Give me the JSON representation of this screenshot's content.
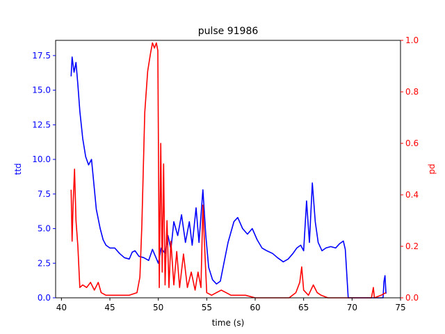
{
  "chart_data": {
    "type": "line",
    "title": "pulse 91986",
    "xlabel": "time (s)",
    "xlim": [
      39.4,
      75.0
    ],
    "xticks": [
      40,
      45,
      50,
      55,
      60,
      65,
      70,
      75
    ],
    "grid": false,
    "left_axis": {
      "label": "ttd",
      "color": "#0000ff",
      "ylim": [
        0,
        18.6
      ],
      "ticks": [
        0.0,
        2.5,
        5.0,
        7.5,
        10.0,
        12.5,
        15.0,
        17.5
      ],
      "tick_labels": [
        "0.0",
        "2.5",
        "5.0",
        "7.5",
        "10.0",
        "12.5",
        "15.0",
        "17.5"
      ]
    },
    "right_axis": {
      "label": "pd",
      "color": "#ff0000",
      "ylim": [
        0,
        1.0
      ],
      "ticks": [
        0.0,
        0.2,
        0.4,
        0.6,
        0.8,
        1.0
      ],
      "tick_labels": [
        "0.0",
        "0.2",
        "0.4",
        "0.6",
        "0.8",
        "1.0"
      ]
    },
    "series": [
      {
        "axis": "left",
        "color": "#0000ff",
        "points": [
          [
            41.0,
            16.0
          ],
          [
            41.1,
            17.4
          ],
          [
            41.3,
            16.3
          ],
          [
            41.5,
            17.0
          ],
          [
            41.7,
            15.4
          ],
          [
            41.9,
            13.5
          ],
          [
            42.2,
            11.5
          ],
          [
            42.5,
            10.2
          ],
          [
            42.8,
            9.6
          ],
          [
            43.1,
            10.0
          ],
          [
            43.3,
            8.6
          ],
          [
            43.6,
            6.4
          ],
          [
            44.0,
            5.0
          ],
          [
            44.3,
            4.2
          ],
          [
            44.6,
            3.8
          ],
          [
            45.0,
            3.6
          ],
          [
            45.5,
            3.6
          ],
          [
            46.0,
            3.2
          ],
          [
            46.5,
            2.9
          ],
          [
            47.0,
            2.8
          ],
          [
            47.3,
            3.3
          ],
          [
            47.6,
            3.4
          ],
          [
            48.0,
            3.0
          ],
          [
            48.5,
            2.9
          ],
          [
            49.0,
            2.7
          ],
          [
            49.4,
            3.5
          ],
          [
            49.7,
            3.0
          ],
          [
            50.0,
            2.5
          ],
          [
            50.3,
            3.6
          ],
          [
            50.7,
            3.2
          ],
          [
            51.0,
            4.5
          ],
          [
            51.3,
            3.5
          ],
          [
            51.6,
            5.5
          ],
          [
            52.0,
            4.5
          ],
          [
            52.4,
            6.0
          ],
          [
            52.8,
            4.0
          ],
          [
            53.2,
            5.5
          ],
          [
            53.5,
            3.8
          ],
          [
            53.9,
            6.5
          ],
          [
            54.2,
            4.0
          ],
          [
            54.6,
            7.8
          ],
          [
            54.9,
            4.5
          ],
          [
            55.2,
            2.2
          ],
          [
            55.6,
            1.3
          ],
          [
            56.0,
            1.0
          ],
          [
            56.4,
            1.2
          ],
          [
            56.8,
            2.6
          ],
          [
            57.2,
            4.0
          ],
          [
            57.8,
            5.5
          ],
          [
            58.2,
            5.8
          ],
          [
            58.7,
            5.0
          ],
          [
            59.2,
            4.6
          ],
          [
            59.7,
            5.0
          ],
          [
            60.2,
            4.2
          ],
          [
            60.7,
            3.6
          ],
          [
            61.2,
            3.4
          ],
          [
            61.8,
            3.2
          ],
          [
            62.3,
            2.9
          ],
          [
            62.9,
            2.6
          ],
          [
            63.4,
            2.8
          ],
          [
            63.9,
            3.2
          ],
          [
            64.3,
            3.6
          ],
          [
            64.7,
            3.8
          ],
          [
            65.0,
            3.4
          ],
          [
            65.3,
            7.0
          ],
          [
            65.6,
            4.0
          ],
          [
            65.9,
            8.3
          ],
          [
            66.2,
            5.5
          ],
          [
            66.5,
            4.0
          ],
          [
            66.9,
            3.4
          ],
          [
            67.3,
            3.6
          ],
          [
            67.8,
            3.7
          ],
          [
            68.3,
            3.6
          ],
          [
            68.7,
            3.9
          ],
          [
            69.1,
            4.1
          ],
          [
            69.3,
            3.5
          ],
          [
            69.6,
            0.0
          ],
          [
            70.5,
            0.0
          ],
          [
            72.0,
            0.0
          ],
          [
            73.2,
            0.0
          ],
          [
            73.3,
            1.2
          ],
          [
            73.4,
            1.6
          ],
          [
            73.5,
            0.3
          ]
        ]
      },
      {
        "axis": "right",
        "color": "#ff0000",
        "points": [
          [
            41.0,
            0.42
          ],
          [
            41.1,
            0.22
          ],
          [
            41.2,
            0.36
          ],
          [
            41.35,
            0.5
          ],
          [
            41.5,
            0.3
          ],
          [
            41.7,
            0.2
          ],
          [
            41.9,
            0.04
          ],
          [
            42.2,
            0.05
          ],
          [
            42.6,
            0.04
          ],
          [
            43.0,
            0.06
          ],
          [
            43.4,
            0.03
          ],
          [
            43.8,
            0.06
          ],
          [
            44.1,
            0.02
          ],
          [
            44.6,
            0.01
          ],
          [
            45.0,
            0.01
          ],
          [
            46.0,
            0.01
          ],
          [
            47.0,
            0.01
          ],
          [
            47.8,
            0.02
          ],
          [
            48.1,
            0.08
          ],
          [
            48.3,
            0.28
          ],
          [
            48.6,
            0.72
          ],
          [
            48.9,
            0.88
          ],
          [
            49.2,
            0.95
          ],
          [
            49.4,
            0.99
          ],
          [
            49.6,
            0.97
          ],
          [
            49.8,
            0.99
          ],
          [
            49.95,
            0.96
          ],
          [
            50.1,
            0.04
          ],
          [
            50.25,
            0.6
          ],
          [
            50.4,
            0.1
          ],
          [
            50.55,
            0.52
          ],
          [
            50.7,
            0.05
          ],
          [
            50.9,
            0.3
          ],
          [
            51.1,
            0.04
          ],
          [
            51.3,
            0.22
          ],
          [
            51.6,
            0.05
          ],
          [
            51.9,
            0.18
          ],
          [
            52.2,
            0.04
          ],
          [
            52.6,
            0.17
          ],
          [
            53.0,
            0.04
          ],
          [
            53.4,
            0.1
          ],
          [
            53.8,
            0.03
          ],
          [
            54.1,
            0.1
          ],
          [
            54.4,
            0.04
          ],
          [
            54.6,
            0.36
          ],
          [
            54.8,
            0.18
          ],
          [
            55.0,
            0.02
          ],
          [
            55.5,
            0.01
          ],
          [
            56.0,
            0.02
          ],
          [
            56.5,
            0.03
          ],
          [
            57.0,
            0.02
          ],
          [
            57.5,
            0.01
          ],
          [
            58.5,
            0.01
          ],
          [
            59.0,
            0.01
          ],
          [
            60.0,
            0.0
          ],
          [
            62.0,
            0.0
          ],
          [
            63.5,
            0.0
          ],
          [
            64.2,
            0.02
          ],
          [
            64.6,
            0.06
          ],
          [
            64.8,
            0.12
          ],
          [
            65.0,
            0.03
          ],
          [
            65.5,
            0.01
          ],
          [
            66.0,
            0.05
          ],
          [
            66.4,
            0.02
          ],
          [
            66.8,
            0.01
          ],
          [
            67.5,
            0.0
          ],
          [
            69.0,
            0.0
          ],
          [
            70.0,
            0.0
          ],
          [
            72.0,
            0.0
          ],
          [
            72.2,
            0.04
          ],
          [
            72.3,
            0.0
          ],
          [
            73.0,
            0.01
          ],
          [
            73.5,
            0.02
          ]
        ]
      }
    ]
  }
}
